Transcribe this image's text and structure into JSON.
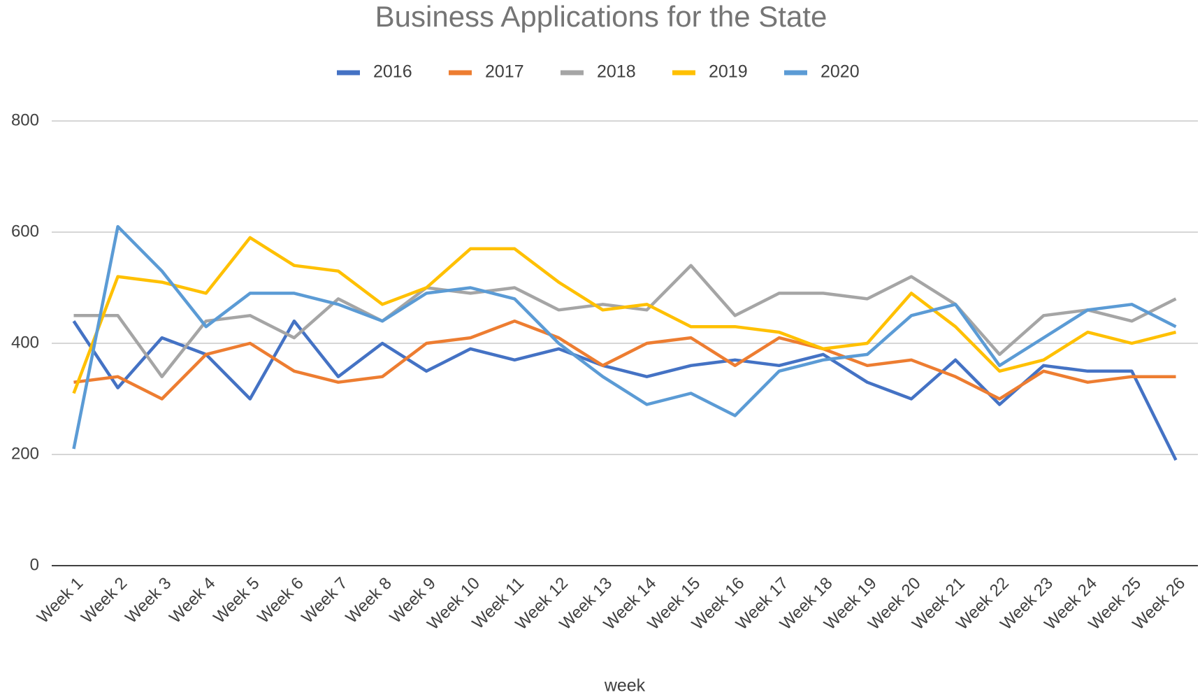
{
  "chart_data": {
    "type": "line",
    "title": "Business Applications for the State",
    "x_label": "week",
    "categories": [
      "Week 1",
      "Week 2",
      "Week 3",
      "Week 4",
      "Week 5",
      "Week 6",
      "Week 7",
      "Week 8",
      "Week 9",
      "Week 10",
      "Week 11",
      "Week 12",
      "Week 13",
      "Week 14",
      "Week 15",
      "Week 16",
      "Week 17",
      "Week 18",
      "Week 19",
      "Week 20",
      "Week 21",
      "Week 22",
      "Week 23",
      "Week 24",
      "Week 25",
      "Week 26"
    ],
    "series": [
      {
        "name": "2016",
        "color": "#4472c4",
        "values": [
          440,
          320,
          410,
          380,
          300,
          440,
          340,
          400,
          350,
          390,
          370,
          390,
          360,
          340,
          360,
          370,
          360,
          380,
          330,
          300,
          370,
          290,
          360,
          350,
          350,
          190
        ]
      },
      {
        "name": "2017",
        "color": "#ed7d31",
        "values": [
          330,
          340,
          300,
          380,
          400,
          350,
          330,
          340,
          400,
          410,
          440,
          410,
          360,
          400,
          410,
          360,
          410,
          390,
          360,
          370,
          340,
          300,
          350,
          330,
          340,
          340
        ]
      },
      {
        "name": "2018",
        "color": "#a5a5a5",
        "values": [
          450,
          450,
          340,
          440,
          450,
          410,
          480,
          440,
          500,
          490,
          500,
          460,
          470,
          460,
          540,
          450,
          490,
          490,
          480,
          520,
          470,
          380,
          450,
          460,
          440,
          480
        ]
      },
      {
        "name": "2019",
        "color": "#ffc000",
        "values": [
          310,
          520,
          510,
          490,
          590,
          540,
          530,
          470,
          500,
          570,
          570,
          510,
          460,
          470,
          430,
          430,
          420,
          390,
          400,
          490,
          430,
          350,
          370,
          420,
          400,
          420
        ]
      },
      {
        "name": "2020",
        "color": "#5b9bd5",
        "values": [
          210,
          610,
          530,
          430,
          490,
          490,
          470,
          440,
          490,
          500,
          480,
          400,
          340,
          290,
          310,
          270,
          350,
          370,
          380,
          450,
          470,
          360,
          410,
          460,
          470,
          430
        ]
      }
    ],
    "ylim": [
      0,
      800
    ],
    "yticks": [
      0,
      200,
      400,
      600,
      800
    ],
    "grid": true,
    "legend": "top"
  }
}
